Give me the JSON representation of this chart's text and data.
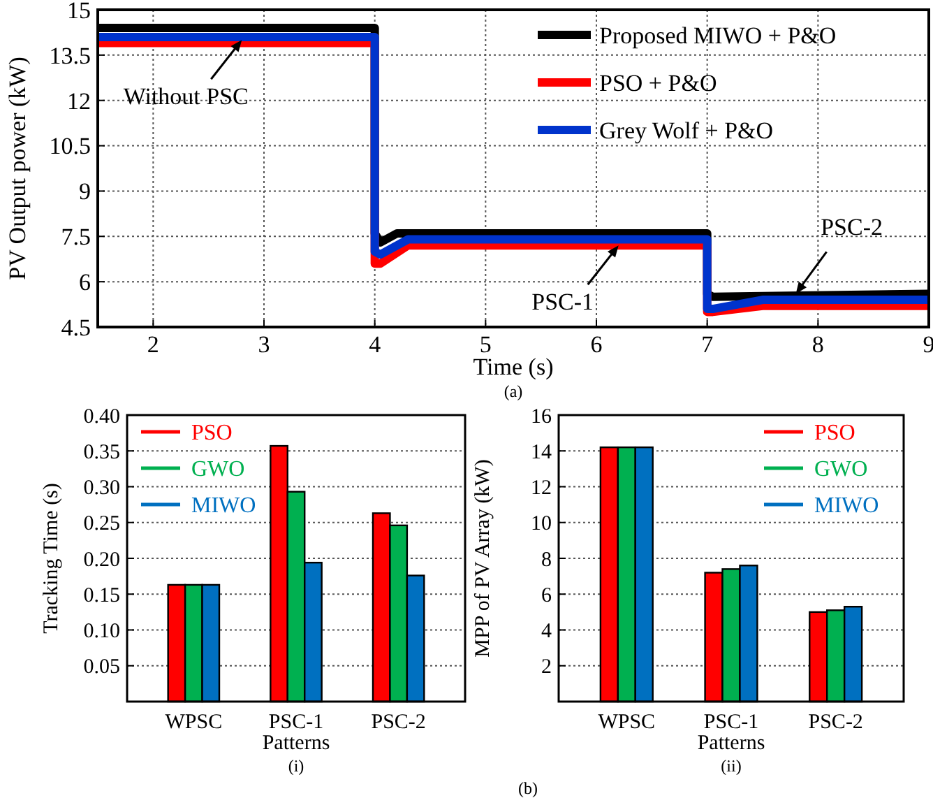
{
  "chart_data": [
    {
      "type": "line",
      "xlabel": "Time (s)",
      "ylabel": "PV Output power (kW)",
      "xlim": [
        1.5,
        9
      ],
      "ylim": [
        4.5,
        15
      ],
      "xticks": [
        2,
        3,
        4,
        5,
        6,
        7,
        8,
        9
      ],
      "yticks": [
        {
          "value": 4.5,
          "label": "4.5"
        },
        6,
        {
          "value": 7.5,
          "label": "7.5"
        },
        9,
        {
          "value": 10.5,
          "label": "10.5"
        },
        12,
        {
          "value": 13.5,
          "label": "13.5"
        },
        15
      ],
      "grid": true,
      "legend": "top right",
      "line_style": "solid",
      "series": [
        {
          "name": "Proposed MIWO + P&O",
          "color": "#000000",
          "x": [
            1.5,
            4,
            4,
            4.05,
            4.2,
            7,
            7,
            7.05,
            9
          ],
          "values": [
            14.4,
            14.4,
            7.6,
            7.3,
            7.6,
            7.6,
            5.6,
            5.5,
            5.6
          ]
        },
        {
          "name": "PSO + P&O",
          "color": "#ff0000",
          "x": [
            1.5,
            4,
            4,
            4.05,
            4.3,
            7,
            7,
            7.05,
            7.5,
            9
          ],
          "values": [
            13.9,
            13.9,
            6.6,
            6.6,
            7.2,
            7.2,
            5.0,
            5.0,
            5.2,
            5.2
          ]
        },
        {
          "name": "Grey Wolf + P&O",
          "color": "#0033cc",
          "x": [
            1.5,
            4,
            4,
            4.05,
            4.3,
            7,
            7,
            7.05,
            7.5,
            9
          ],
          "values": [
            14.1,
            14.1,
            7.0,
            6.9,
            7.4,
            7.4,
            5.1,
            5.1,
            5.4,
            5.4
          ]
        }
      ],
      "annotations": [
        {
          "text": "Without PSC",
          "x": 2.8,
          "y": 14.0
        },
        {
          "text": "PSC-1",
          "x": 6.2,
          "y": 7.2
        },
        {
          "text": "PSC-2",
          "x": 7.8,
          "y": 5.6
        },
        "(a)"
      ]
    },
    {
      "type": "bar",
      "xlabel": "Patterns",
      "ylabel": "Tracking Time (s)",
      "categories": [
        "WPSC",
        "PSC-1",
        "PSC-2"
      ],
      "ylim": [
        0,
        0.4
      ],
      "yticks": [
        {
          "value": 0.05,
          "label": "0.05"
        },
        {
          "value": 0.1,
          "label": "0.10"
        },
        {
          "value": 0.15,
          "label": "0.15"
        },
        {
          "value": 0.2,
          "label": "0.20"
        },
        {
          "value": 0.25,
          "label": "0.25"
        },
        {
          "value": 0.3,
          "label": "0.30"
        },
        {
          "value": 0.35,
          "label": "0.35"
        },
        {
          "value": 0.4,
          "label": "0.40"
        }
      ],
      "grid": "y",
      "legend": "top left",
      "series": [
        {
          "name": "PSO",
          "color": "#ff0000",
          "values": [
            0.163,
            0.357,
            0.263
          ]
        },
        {
          "name": "GWO",
          "color": "#00b050",
          "values": [
            0.163,
            0.293,
            0.246
          ]
        },
        {
          "name": "MIWO",
          "color": "#0070c0",
          "values": [
            0.163,
            0.194,
            0.176
          ]
        }
      ],
      "annotations": [
        "(i)"
      ]
    },
    {
      "type": "bar",
      "xlabel": "Patterns",
      "ylabel": "MPP of PV Array (kW)",
      "categories": [
        "WPSC",
        "PSC-1",
        "PSC-2"
      ],
      "ylim": [
        0,
        16
      ],
      "yticks": [
        2,
        4,
        6,
        8,
        10,
        12,
        14,
        16
      ],
      "grid": "y",
      "legend": "top right",
      "series": [
        {
          "name": "PSO",
          "color": "#ff0000",
          "values": [
            14.2,
            7.2,
            5.0
          ]
        },
        {
          "name": "GWO",
          "color": "#00b050",
          "values": [
            14.2,
            7.4,
            5.1
          ]
        },
        {
          "name": "MIWO",
          "color": "#0070c0",
          "values": [
            14.2,
            7.6,
            5.3
          ]
        }
      ],
      "annotations": [
        "(ii)",
        "(b)"
      ]
    }
  ]
}
